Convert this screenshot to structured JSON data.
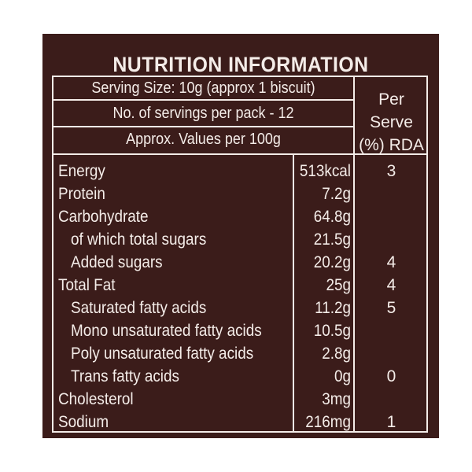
{
  "title": "NUTRITION INFORMATION",
  "header": {
    "serving_size": "Serving Size: 10g (approx 1 biscuit)",
    "servings_per_pack": "No. of servings per pack - 12",
    "values_per": "Approx. Values per 100g",
    "per_serve": [
      "Per",
      "Serve",
      "(%) RDA"
    ]
  },
  "rows": [
    {
      "nutrient": "Energy",
      "value": "513kcal",
      "rda": "3"
    },
    {
      "nutrient": "Protein",
      "value": "7.2g",
      "rda": ""
    },
    {
      "nutrient": "Carbohydrate",
      "value": "64.8g",
      "rda": ""
    },
    {
      "nutrient": "of which total sugars",
      "value": "21.5g",
      "rda": ""
    },
    {
      "nutrient": "Added sugars",
      "value": "20.2g",
      "rda": "4"
    },
    {
      "nutrient": "Total Fat",
      "value": "25g",
      "rda": "4"
    },
    {
      "nutrient": "Saturated fatty acids",
      "value": "11.2g",
      "rda": "5"
    },
    {
      "nutrient": "Mono unsaturated fatty acids",
      "value": "10.5g",
      "rda": ""
    },
    {
      "nutrient": "Poly unsaturated fatty acids",
      "value": "2.8g",
      "rda": ""
    },
    {
      "nutrient": "Trans fatty acids",
      "value": "0g",
      "rda": "0"
    },
    {
      "nutrient": "Cholesterol",
      "value": "3mg",
      "rda": ""
    },
    {
      "nutrient": "Sodium",
      "value": "216mg",
      "rda": "1"
    }
  ],
  "colors": {
    "background": "#3b1c1a",
    "text": "#f4ece8"
  }
}
